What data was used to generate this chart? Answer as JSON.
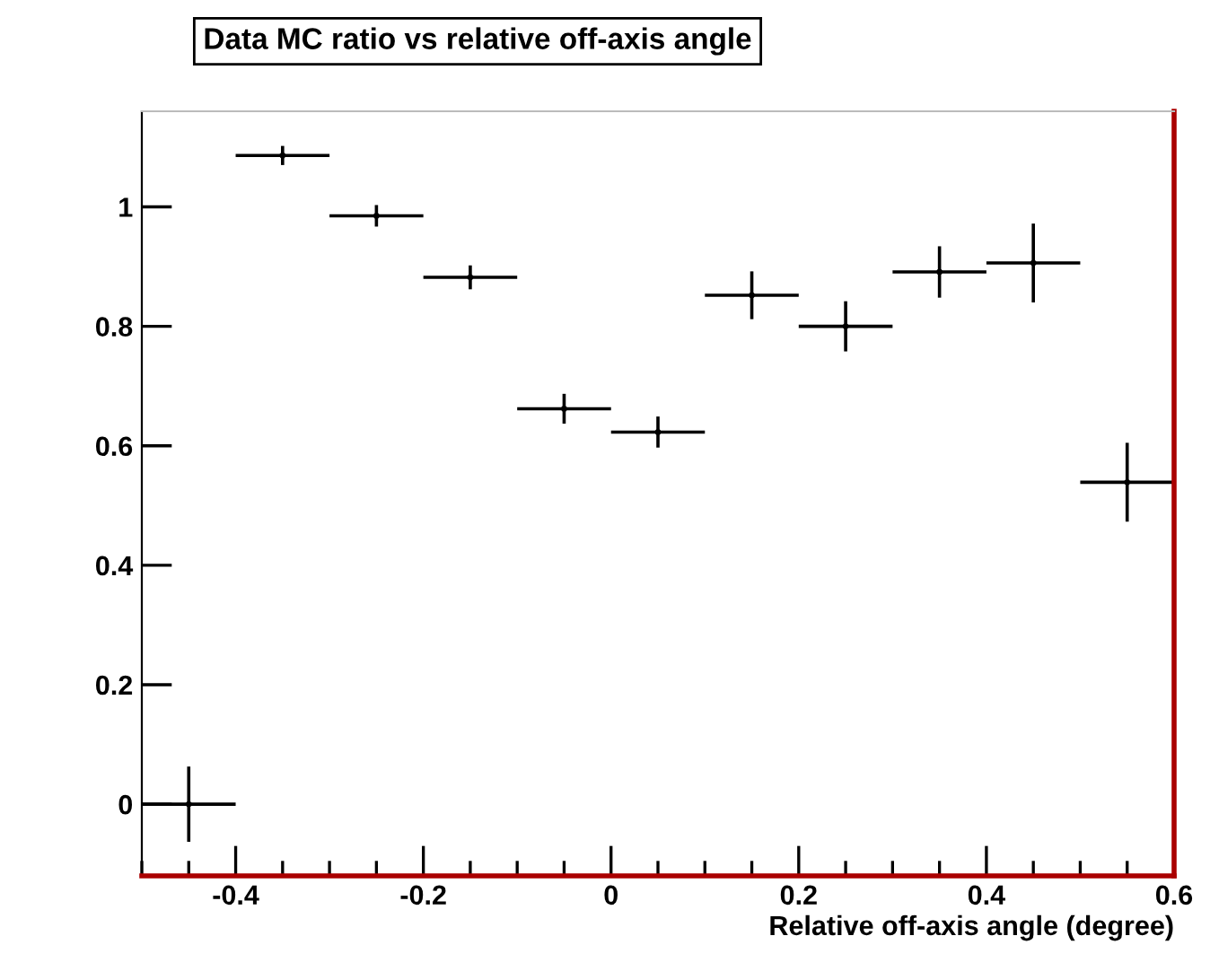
{
  "chart_data": {
    "type": "scatter",
    "title": "Data MC ratio vs relative off-axis angle",
    "xlabel": "Relative off-axis angle (degree)",
    "x": [
      -0.45,
      -0.35,
      -0.25,
      -0.15,
      -0.05,
      0.05,
      0.15,
      0.25,
      0.35,
      0.45,
      0.55
    ],
    "values": [
      0.0,
      1.086,
      0.985,
      0.882,
      0.662,
      0.623,
      0.852,
      0.8,
      0.891,
      0.906,
      0.539
    ],
    "errors": [
      0.063,
      0.016,
      0.018,
      0.02,
      0.025,
      0.026,
      0.04,
      0.042,
      0.043,
      0.066,
      0.066
    ],
    "xerrors": [
      0.05,
      0.05,
      0.05,
      0.05,
      0.05,
      0.05,
      0.05,
      0.05,
      0.05,
      0.05,
      0.05
    ],
    "color": "#000000",
    "marker": "none",
    "grid": false,
    "legend": false,
    "xlim": [
      -0.5,
      0.6
    ],
    "xticks": [
      -0.4,
      -0.2,
      0,
      0.2,
      0.4,
      0.6
    ],
    "ylim": [
      -0.12,
      1.16
    ],
    "yticks": [
      0,
      0.2,
      0.4,
      0.6,
      0.8,
      1
    ]
  }
}
